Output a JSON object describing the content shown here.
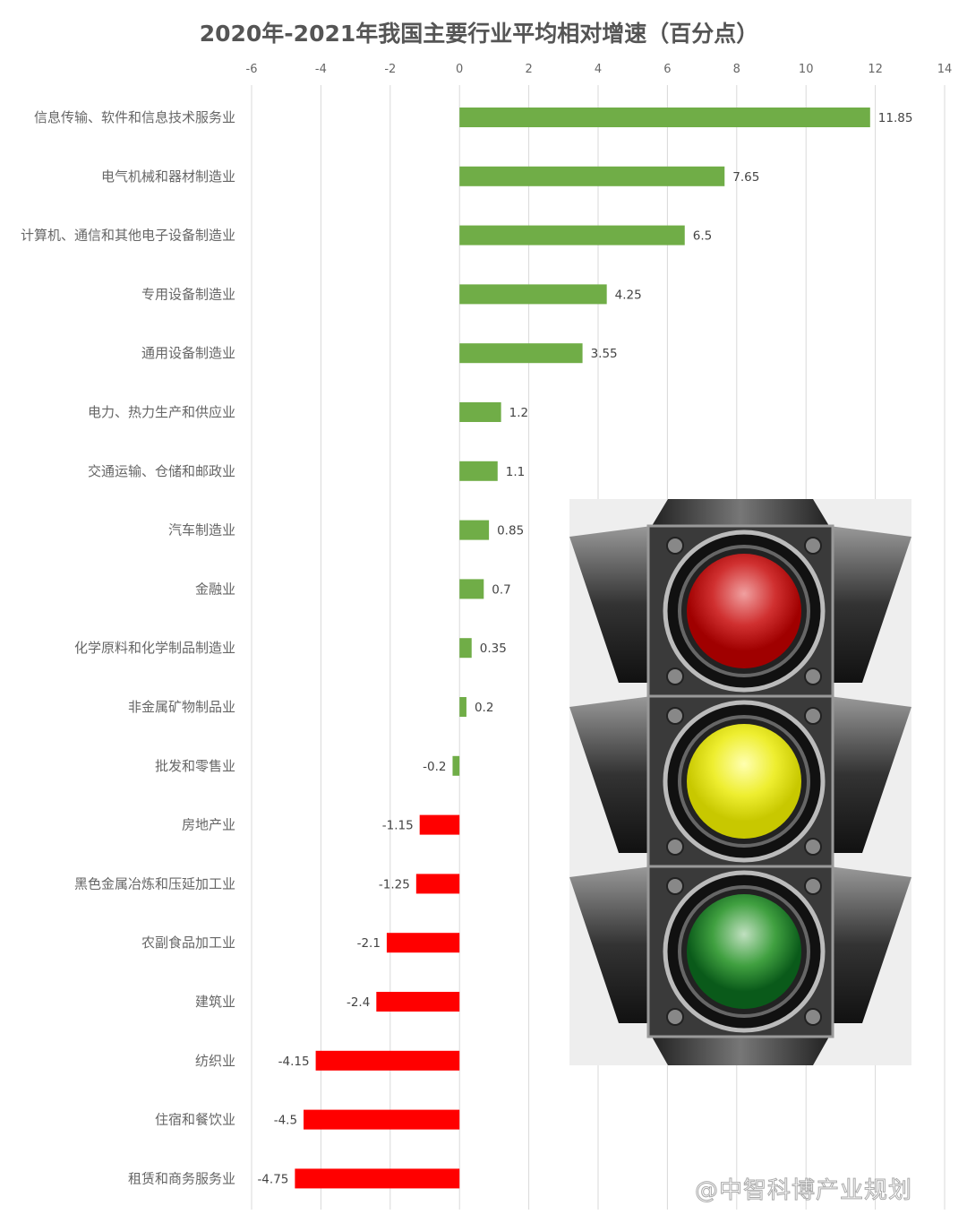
{
  "chart_data": {
    "type": "bar",
    "orientation": "horizontal",
    "title": "2020年-2021年我国主要行业平均相对增速（百分点）",
    "xlabel": "",
    "ylabel": "",
    "xlim": [
      -6,
      14
    ],
    "xticks": [
      -6,
      -4,
      -2,
      0,
      2,
      4,
      6,
      8,
      10,
      12,
      14
    ],
    "axis_position": "top",
    "grid": true,
    "categories": [
      "信息传输、软件和信息技术服务业",
      "电气机械和器材制造业",
      "计算机、通信和其他电子设备制造业",
      "专用设备制造业",
      "通用设备制造业",
      "电力、热力生产和供应业",
      "交通运输、仓储和邮政业",
      "汽车制造业",
      "金融业",
      "化学原料和化学制品制造业",
      "非金属矿物制品业",
      "批发和零售业",
      "房地产业",
      "黑色金属冶炼和压延加工业",
      "农副食品加工业",
      "建筑业",
      "纺织业",
      "住宿和餐饮业",
      "租赁和商务服务业"
    ],
    "values": [
      11.85,
      7.65,
      6.5,
      4.25,
      3.55,
      1.2,
      1.1,
      0.85,
      0.7,
      0.35,
      0.2,
      -0.2,
      -1.15,
      -1.25,
      -2.1,
      -2.4,
      -4.15,
      -4.5,
      -4.75
    ],
    "colors": {
      "positive": "#70ad47",
      "negative": "#ff0000",
      "small_negative": "#70ad47"
    }
  },
  "decoration": {
    "image": "traffic-light-icon"
  },
  "watermark": "@中智科博产业规划"
}
